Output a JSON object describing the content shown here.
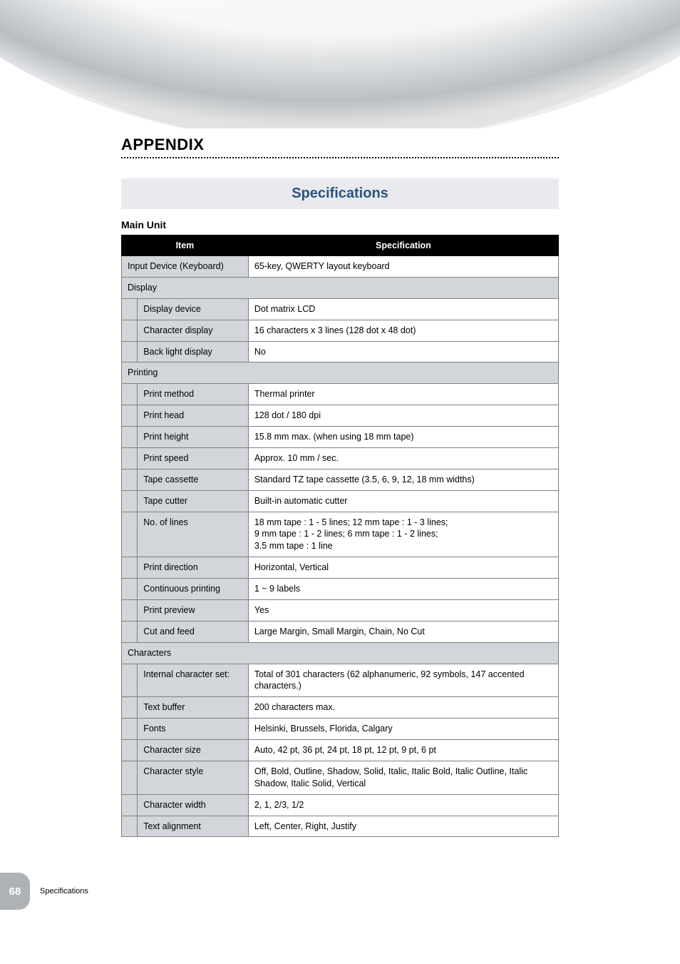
{
  "page": {
    "appendix_title": "APPENDIX",
    "section_heading": "Specifications",
    "sub_heading": "Main Unit",
    "page_number": "68",
    "footer_label": "Specifications"
  },
  "table": {
    "header_item": "Item",
    "header_spec": "Specification",
    "col_widths": {
      "indent": "3.5%",
      "item": "24.5%",
      "spec": "72%"
    },
    "colors": {
      "header_bg": "#000000",
      "header_text": "#ffffff",
      "section_bg": "#d2d6da",
      "item_bg": "#d2d6da",
      "value_bg": "#ffffff",
      "border": "#808080"
    },
    "rows": [
      {
        "type": "full",
        "item": "Input Device (Keyboard)",
        "spec": "65-key, QWERTY layout keyboard"
      },
      {
        "type": "section",
        "label": "Display"
      },
      {
        "type": "sub",
        "item": "Display device",
        "spec": "Dot matrix LCD"
      },
      {
        "type": "sub",
        "item": "Character display",
        "spec": "16 characters x 3 lines (128 dot x 48 dot)"
      },
      {
        "type": "sub",
        "item": "Back light display",
        "spec": "No"
      },
      {
        "type": "section",
        "label": "Printing"
      },
      {
        "type": "sub",
        "item": "Print method",
        "spec": "Thermal printer"
      },
      {
        "type": "sub",
        "item": "Print head",
        "spec": "128 dot / 180 dpi"
      },
      {
        "type": "sub",
        "item": "Print height",
        "spec": "15.8 mm max. (when using 18 mm tape)"
      },
      {
        "type": "sub",
        "item": "Print speed",
        "spec": "Approx. 10 mm / sec."
      },
      {
        "type": "sub",
        "item": "Tape cassette",
        "spec": "Standard TZ tape cassette (3.5, 6, 9, 12, 18 mm widths)"
      },
      {
        "type": "sub",
        "item": "Tape cutter",
        "spec": "Built-in automatic cutter"
      },
      {
        "type": "sub",
        "item": "No. of lines",
        "spec": "18 mm tape : 1 - 5 lines; 12 mm tape : 1 - 3 lines;\n9 mm tape : 1 - 2 lines; 6 mm tape : 1 - 2 lines;\n3.5 mm tape : 1 line"
      },
      {
        "type": "sub",
        "item": "Print direction",
        "spec": "Horizontal, Vertical"
      },
      {
        "type": "sub",
        "item": "Continuous printing",
        "spec": "1 ~ 9 labels"
      },
      {
        "type": "sub",
        "item": "Print preview",
        "spec": "Yes"
      },
      {
        "type": "sub",
        "item": "Cut and feed",
        "spec": "Large Margin, Small Margin, Chain, No Cut"
      },
      {
        "type": "section",
        "label": "Characters"
      },
      {
        "type": "sub",
        "item": "Internal character set:",
        "spec": "Total of 301 characters (62 alphanumeric, 92 symbols, 147 accented characters.)"
      },
      {
        "type": "sub",
        "item": "Text buffer",
        "spec": "200 characters max."
      },
      {
        "type": "sub",
        "item": "Fonts",
        "spec": "Helsinki, Brussels, Florida, Calgary"
      },
      {
        "type": "sub",
        "item": "Character size",
        "spec": "Auto, 42 pt, 36 pt,  24 pt, 18 pt, 12 pt, 9 pt, 6 pt"
      },
      {
        "type": "sub",
        "item": "Character style",
        "spec": "Off, Bold, Outline, Shadow, Solid, Italic, Italic Bold, Italic Outline, Italic Shadow, Italic Solid, Vertical"
      },
      {
        "type": "sub",
        "item": "Character width",
        "spec": "2, 1, 2/3, 1/2"
      },
      {
        "type": "sub",
        "item": "Text alignment",
        "spec": "Left, Center, Right, Justify"
      }
    ]
  }
}
